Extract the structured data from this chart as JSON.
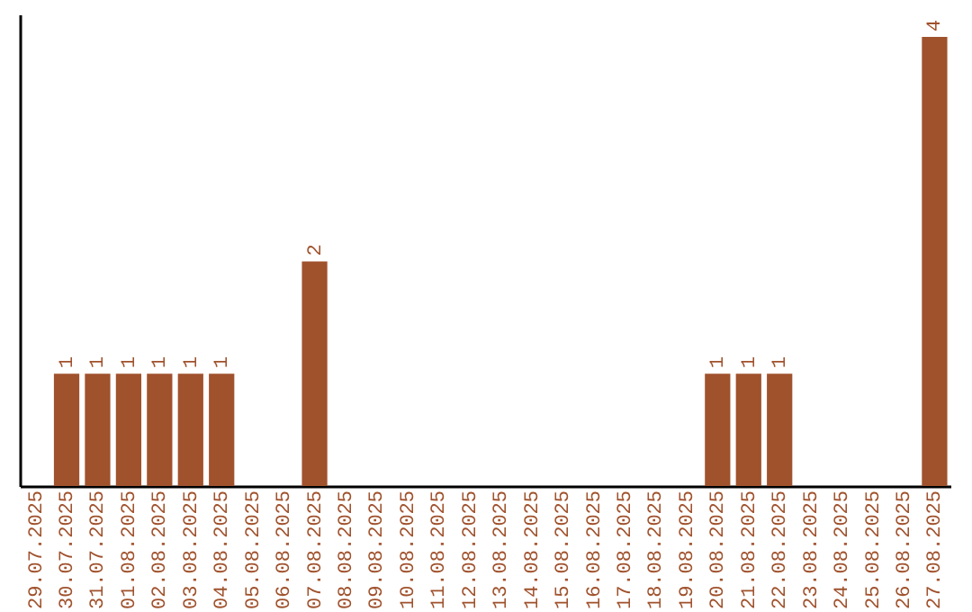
{
  "chart_data": {
    "type": "bar",
    "categories": [
      "29.07.2025",
      "30.07.2025",
      "31.07.2025",
      "01.08.2025",
      "02.08.2025",
      "03.08.2025",
      "04.08.2025",
      "05.08.2025",
      "06.08.2025",
      "07.08.2025",
      "08.08.2025",
      "09.08.2025",
      "10.08.2025",
      "11.08.2025",
      "12.08.2025",
      "13.08.2025",
      "14.08.2025",
      "15.08.2025",
      "16.08.2025",
      "17.08.2025",
      "18.08.2025",
      "19.08.2025",
      "20.08.2025",
      "21.08.2025",
      "22.08.2025",
      "23.08.2025",
      "24.08.2025",
      "25.08.2025",
      "26.08.2025",
      "27.08.2025"
    ],
    "values": [
      0,
      1,
      1,
      1,
      1,
      1,
      1,
      0,
      0,
      2,
      0,
      0,
      0,
      0,
      0,
      0,
      0,
      0,
      0,
      0,
      0,
      0,
      1,
      1,
      1,
      0,
      0,
      0,
      0,
      4
    ],
    "value_labels": [
      null,
      "1",
      "1",
      "1",
      "1",
      "1",
      "1",
      null,
      null,
      "2",
      null,
      null,
      null,
      null,
      null,
      null,
      null,
      null,
      null,
      null,
      null,
      null,
      "1",
      "1",
      "1",
      null,
      null,
      null,
      null,
      "4"
    ],
    "color": "#a0522d",
    "grid": false,
    "tick_labels": "x"
  }
}
